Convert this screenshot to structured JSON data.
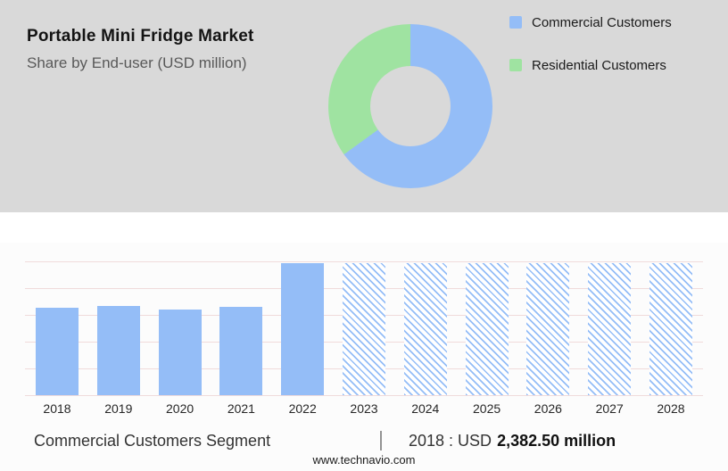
{
  "header": {
    "title": "Portable Mini Fridge Market",
    "subtitle": "Share by End-user (USD million)"
  },
  "legend": {
    "items": [
      {
        "label": "Commercial Customers",
        "color": "#94bdf7"
      },
      {
        "label": "Residential Customers",
        "color": "#9fe3a1"
      }
    ]
  },
  "chart_data": [
    {
      "type": "pie",
      "donut": true,
      "title": "Share by End-user (USD million)",
      "labels": [
        "Commercial Customers",
        "Residential Customers"
      ],
      "values_pct": [
        65,
        35
      ],
      "colors": [
        "#94bdf7",
        "#9fe3a1"
      ],
      "legend_position": "right"
    },
    {
      "type": "bar",
      "categories": [
        "2018",
        "2019",
        "2020",
        "2021",
        "2022",
        "2023",
        "2024",
        "2025",
        "2026",
        "2027",
        "2028"
      ],
      "values": [
        2382.5,
        2430,
        2340,
        2410,
        3600,
        3600,
        3600,
        3600,
        3600,
        3600,
        3600
      ],
      "hatched_categories": [
        "2023",
        "2024",
        "2025",
        "2026",
        "2027",
        "2028"
      ],
      "bar_color": "#94bdf7",
      "ylim": [
        0,
        3650
      ],
      "grid": true,
      "xlabel": "",
      "ylabel": ""
    }
  ],
  "caption": {
    "segment": "Commercial Customers Segment",
    "separator": "|",
    "prefix": "2018 : USD",
    "value": "2,382.50 million"
  },
  "footer": {
    "url": "www.technavio.com"
  },
  "colors": {
    "header_background": "#d9d9d9",
    "commercial_blue": "#94bdf7",
    "residential_green": "#9fe3a1"
  }
}
